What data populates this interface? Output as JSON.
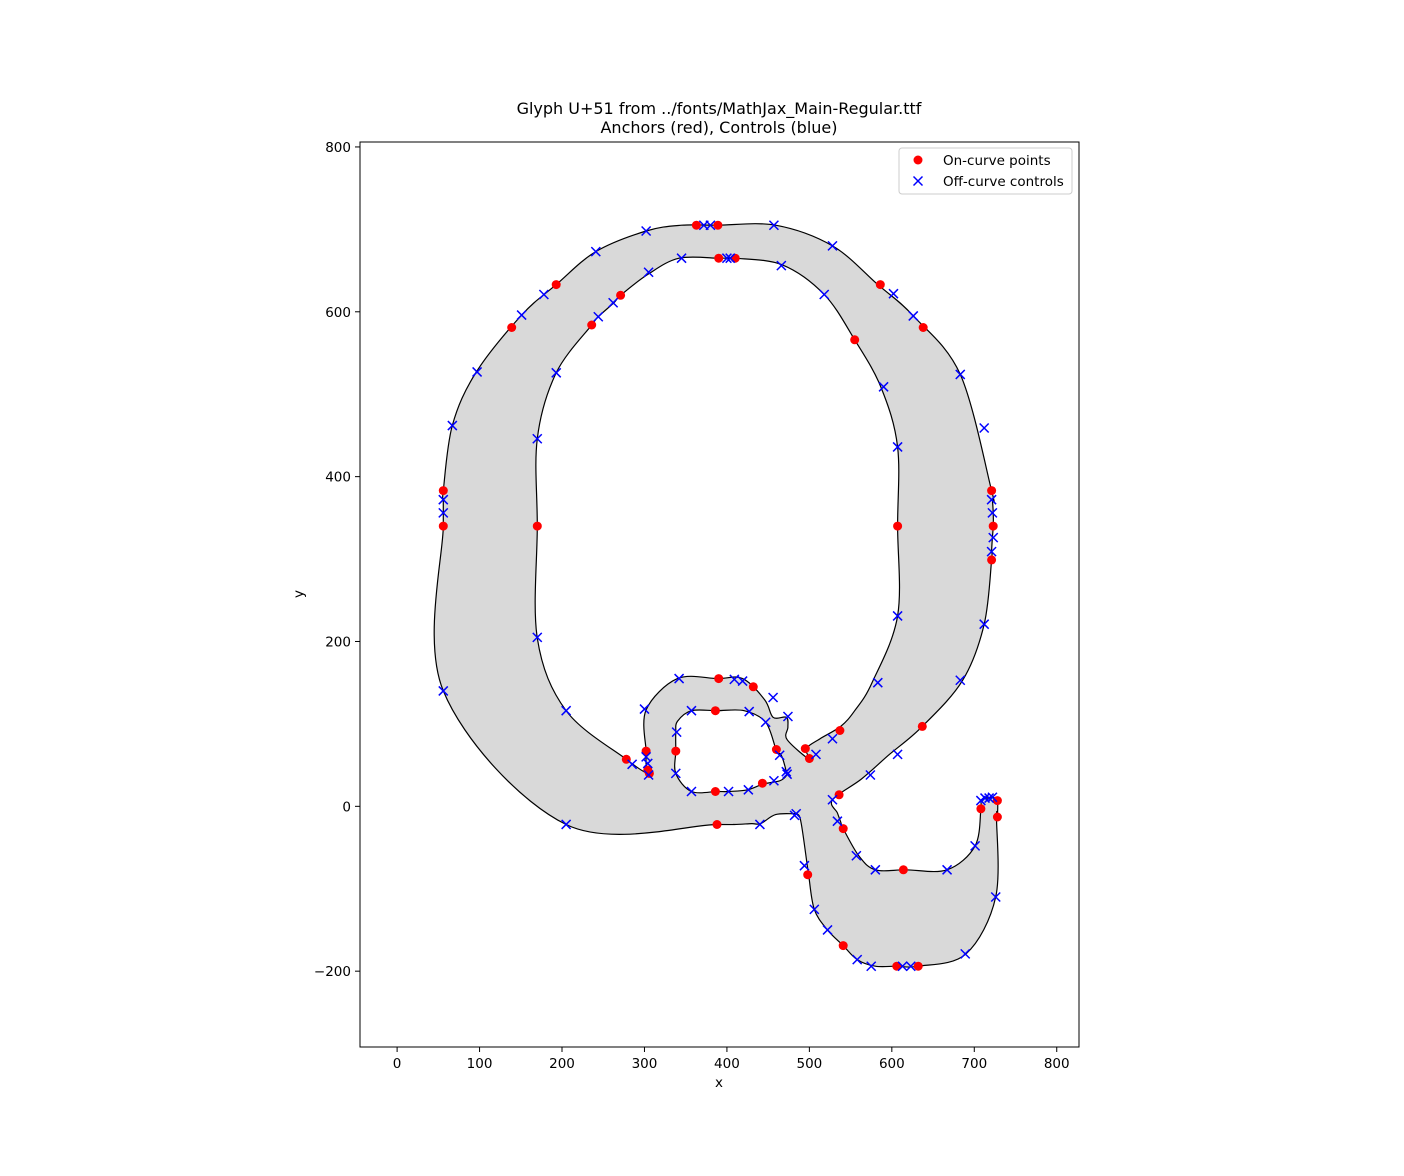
{
  "chart_data": {
    "type": "scatter",
    "title": "Glyph U+51 from ../fonts/MathJax_Main-Regular.ttf",
    "subtitle": "Anchors (red), Controls (blue)",
    "xlabel": "x",
    "ylabel": "y",
    "xlim": [
      -45,
      827
    ],
    "ylim": [
      -292,
      806
    ],
    "xticks": [
      0,
      100,
      200,
      300,
      400,
      500,
      600,
      700,
      800
    ],
    "yticks": [
      -200,
      0,
      200,
      400,
      600,
      800
    ],
    "grid": false,
    "legend_position": "top-right",
    "glyph_fill": "#d9d9d9",
    "glyph_stroke": "#000000",
    "contours": [
      [
        [
          56,
          383
        ],
        [
          56,
          372
        ],
        [
          56,
          356
        ],
        [
          56,
          340
        ],
        [
          56,
          140
        ],
        [
          205,
          -22
        ],
        [
          388,
          -22
        ],
        [
          409,
          -22
        ],
        [
          430,
          -21
        ],
        [
          441,
          -21
        ],
        [
          459,
          -10
        ],
        [
          482,
          -9
        ],
        [
          485,
          -9
        ],
        [
          490,
          -20
        ],
        [
          499,
          -83
        ],
        [
          506,
          -125
        ],
        [
          522,
          -150
        ],
        [
          541,
          -169
        ],
        [
          558,
          -186
        ],
        [
          580,
          -194
        ],
        [
          606,
          -194
        ],
        [
          632,
          -194
        ],
        [
          690,
          -179
        ],
        [
          726,
          -110
        ],
        [
          727,
          -13
        ],
        [
          728,
          -12
        ],
        [
          728,
          7
        ],
        [
          722,
          11
        ],
        [
          718,
          10
        ],
        [
          713,
          10
        ],
        [
          708,
          7
        ],
        [
          708,
          -3
        ],
        [
          701,
          -48
        ],
        [
          667,
          -77
        ],
        [
          617,
          -77
        ],
        [
          580,
          -77
        ],
        [
          560,
          -60
        ],
        [
          541,
          -27
        ],
        [
          538,
          -19
        ],
        [
          534,
          -8
        ],
        [
          528,
          8
        ],
        [
          563,
          33
        ],
        [
          596,
          62
        ],
        [
          637,
          97
        ],
        [
          686,
          153
        ],
        [
          712,
          221
        ],
        [
          721,
          299
        ],
        [
          721,
          309
        ],
        [
          722,
          326
        ],
        [
          723,
          340
        ],
        [
          723,
          356
        ],
        [
          722,
          372
        ],
        [
          721,
          383
        ],
        [
          683,
          524
        ],
        [
          626,
          595
        ],
        [
          583,
          633
        ],
        [
          528,
          680
        ],
        [
          459,
          705
        ],
        [
          389,
          705
        ],
        [
          345,
          705
        ],
        [
          302,
          698
        ],
        [
          241,
          673
        ],
        [
          193,
          633
        ],
        [
          151,
          596
        ],
        [
          96,
          527
        ],
        [
          67,
          462
        ]
      ],
      [
        [
          304,
          40
        ],
        [
          302,
          51
        ],
        [
          302,
          62
        ],
        [
          302,
          67
        ],
        [
          302,
          117
        ],
        [
          340,
          155
        ],
        [
          389,
          155
        ],
        [
          419,
          155
        ],
        [
          446,
          129
        ],
        [
          456,
          108
        ],
        [
          472,
          108
        ],
        [
          474,
          96
        ],
        [
          473,
          81
        ],
        [
          500,
          57
        ],
        [
          496,
          70
        ],
        [
          513,
          82
        ],
        [
          538,
          97
        ],
        [
          555,
          116
        ],
        [
          576,
          150
        ],
        [
          607,
          231
        ],
        [
          607,
          340
        ],
        [
          607,
          436
        ],
        [
          587,
          508
        ],
        [
          555,
          566
        ],
        [
          518,
          621
        ],
        [
          467,
          657
        ],
        [
          410,
          665
        ],
        [
          402,
          665
        ],
        [
          396,
          665
        ],
        [
          389,
          665
        ],
        [
          342,
          665
        ],
        [
          305,
          646
        ],
        [
          271,
          620
        ],
        [
          263,
          611
        ],
        [
          244,
          594
        ],
        [
          236,
          584
        ],
        [
          193,
          526
        ],
        [
          170,
          446
        ],
        [
          170,
          340
        ],
        [
          170,
          204
        ],
        [
          205,
          116
        ],
        [
          278,
          57
        ]
      ],
      [
        [
          338,
          67
        ],
        [
          338,
          89
        ],
        [
          340,
          103
        ],
        [
          357,
          116
        ],
        [
          388,
          116
        ],
        [
          421,
          116
        ],
        [
          447,
          102
        ],
        [
          460,
          68
        ],
        [
          466,
          62
        ],
        [
          472,
          42
        ],
        [
          472,
          37
        ],
        [
          464,
          31
        ],
        [
          444,
          27
        ],
        [
          425,
          20
        ],
        [
          402,
          18
        ],
        [
          388,
          18
        ],
        [
          357,
          18
        ],
        [
          338,
          40
        ]
      ]
    ],
    "series": [
      {
        "name": "On-curve points",
        "color": "#ff0000",
        "marker": "circle",
        "points": [
          [
            56,
            383
          ],
          [
            56,
            340
          ],
          [
            139,
            581
          ],
          [
            193,
            633
          ],
          [
            236,
            584
          ],
          [
            271,
            620
          ],
          [
            363,
            705
          ],
          [
            389,
            705
          ],
          [
            390,
            665
          ],
          [
            410,
            665
          ],
          [
            170,
            340
          ],
          [
            278,
            57
          ],
          [
            302,
            67
          ],
          [
            304,
            44
          ],
          [
            306,
            40
          ],
          [
            338,
            67
          ],
          [
            388,
            -22
          ],
          [
            386,
            18
          ],
          [
            386,
            116
          ],
          [
            390,
            155
          ],
          [
            432,
            145
          ],
          [
            443,
            28
          ],
          [
            460,
            69
          ],
          [
            495,
            70
          ],
          [
            500,
            58
          ],
          [
            498,
            -83
          ],
          [
            537,
            92
          ],
          [
            536,
            14
          ],
          [
            541,
            -27
          ],
          [
            541,
            -169
          ],
          [
            606,
            -194
          ],
          [
            632,
            -194
          ],
          [
            614,
            -77
          ],
          [
            708,
            -3
          ],
          [
            728,
            7
          ],
          [
            728,
            -13
          ],
          [
            721,
            299
          ],
          [
            723,
            340
          ],
          [
            721,
            383
          ],
          [
            607,
            340
          ],
          [
            637,
            97
          ],
          [
            555,
            566
          ],
          [
            586,
            633
          ],
          [
            638,
            581
          ]
        ]
      },
      {
        "name": "Off-curve controls",
        "color": "#0000ff",
        "marker": "x",
        "points": [
          [
            56,
            372
          ],
          [
            56,
            356
          ],
          [
            56,
            140
          ],
          [
            67,
            462
          ],
          [
            97,
            527
          ],
          [
            151,
            596
          ],
          [
            178,
            621
          ],
          [
            241,
            673
          ],
          [
            244,
            594
          ],
          [
            262,
            611
          ],
          [
            302,
            698
          ],
          [
            305,
            648
          ],
          [
            345,
            665
          ],
          [
            372,
            705
          ],
          [
            380,
            705
          ],
          [
            400,
            665
          ],
          [
            404,
            665
          ],
          [
            457,
            705
          ],
          [
            466,
            656
          ],
          [
            528,
            680
          ],
          [
            518,
            621
          ],
          [
            590,
            509
          ],
          [
            607,
            436
          ],
          [
            602,
            622
          ],
          [
            626,
            595
          ],
          [
            683,
            524
          ],
          [
            712,
            459
          ],
          [
            721,
            372
          ],
          [
            722,
            356
          ],
          [
            723,
            326
          ],
          [
            721,
            309
          ],
          [
            712,
            221
          ],
          [
            683,
            153
          ],
          [
            583,
            150
          ],
          [
            607,
            231
          ],
          [
            607,
            63
          ],
          [
            574,
            38
          ],
          [
            528,
            82
          ],
          [
            508,
            63
          ],
          [
            528,
            8
          ],
          [
            534,
            -18
          ],
          [
            557,
            -60
          ],
          [
            580,
            -77
          ],
          [
            667,
            -77
          ],
          [
            701,
            -48
          ],
          [
            708,
            7
          ],
          [
            713,
            10
          ],
          [
            718,
            10
          ],
          [
            722,
            11
          ],
          [
            726,
            -110
          ],
          [
            689,
            -179
          ],
          [
            623,
            -194
          ],
          [
            613,
            -194
          ],
          [
            575,
            -194
          ],
          [
            558,
            -186
          ],
          [
            522,
            -150
          ],
          [
            506,
            -125
          ],
          [
            494,
            -72
          ],
          [
            484,
            -9
          ],
          [
            482,
            -11
          ],
          [
            473,
            39
          ],
          [
            472,
            42
          ],
          [
            474,
            109
          ],
          [
            456,
            132
          ],
          [
            447,
            102
          ],
          [
            427,
            115
          ],
          [
            419,
            152
          ],
          [
            409,
            154
          ],
          [
            402,
            18
          ],
          [
            426,
            20
          ],
          [
            440,
            -22
          ],
          [
            457,
            31
          ],
          [
            464,
            62
          ],
          [
            357,
            116
          ],
          [
            342,
            155
          ],
          [
            300,
            118
          ],
          [
            339,
            90
          ],
          [
            338,
            40
          ],
          [
            357,
            18
          ],
          [
            304,
            52
          ],
          [
            302,
            60
          ],
          [
            305,
            38
          ],
          [
            285,
            51
          ],
          [
            205,
            -22
          ],
          [
            205,
            116
          ],
          [
            170,
            205
          ],
          [
            170,
            446
          ],
          [
            193,
            526
          ]
        ]
      }
    ]
  }
}
